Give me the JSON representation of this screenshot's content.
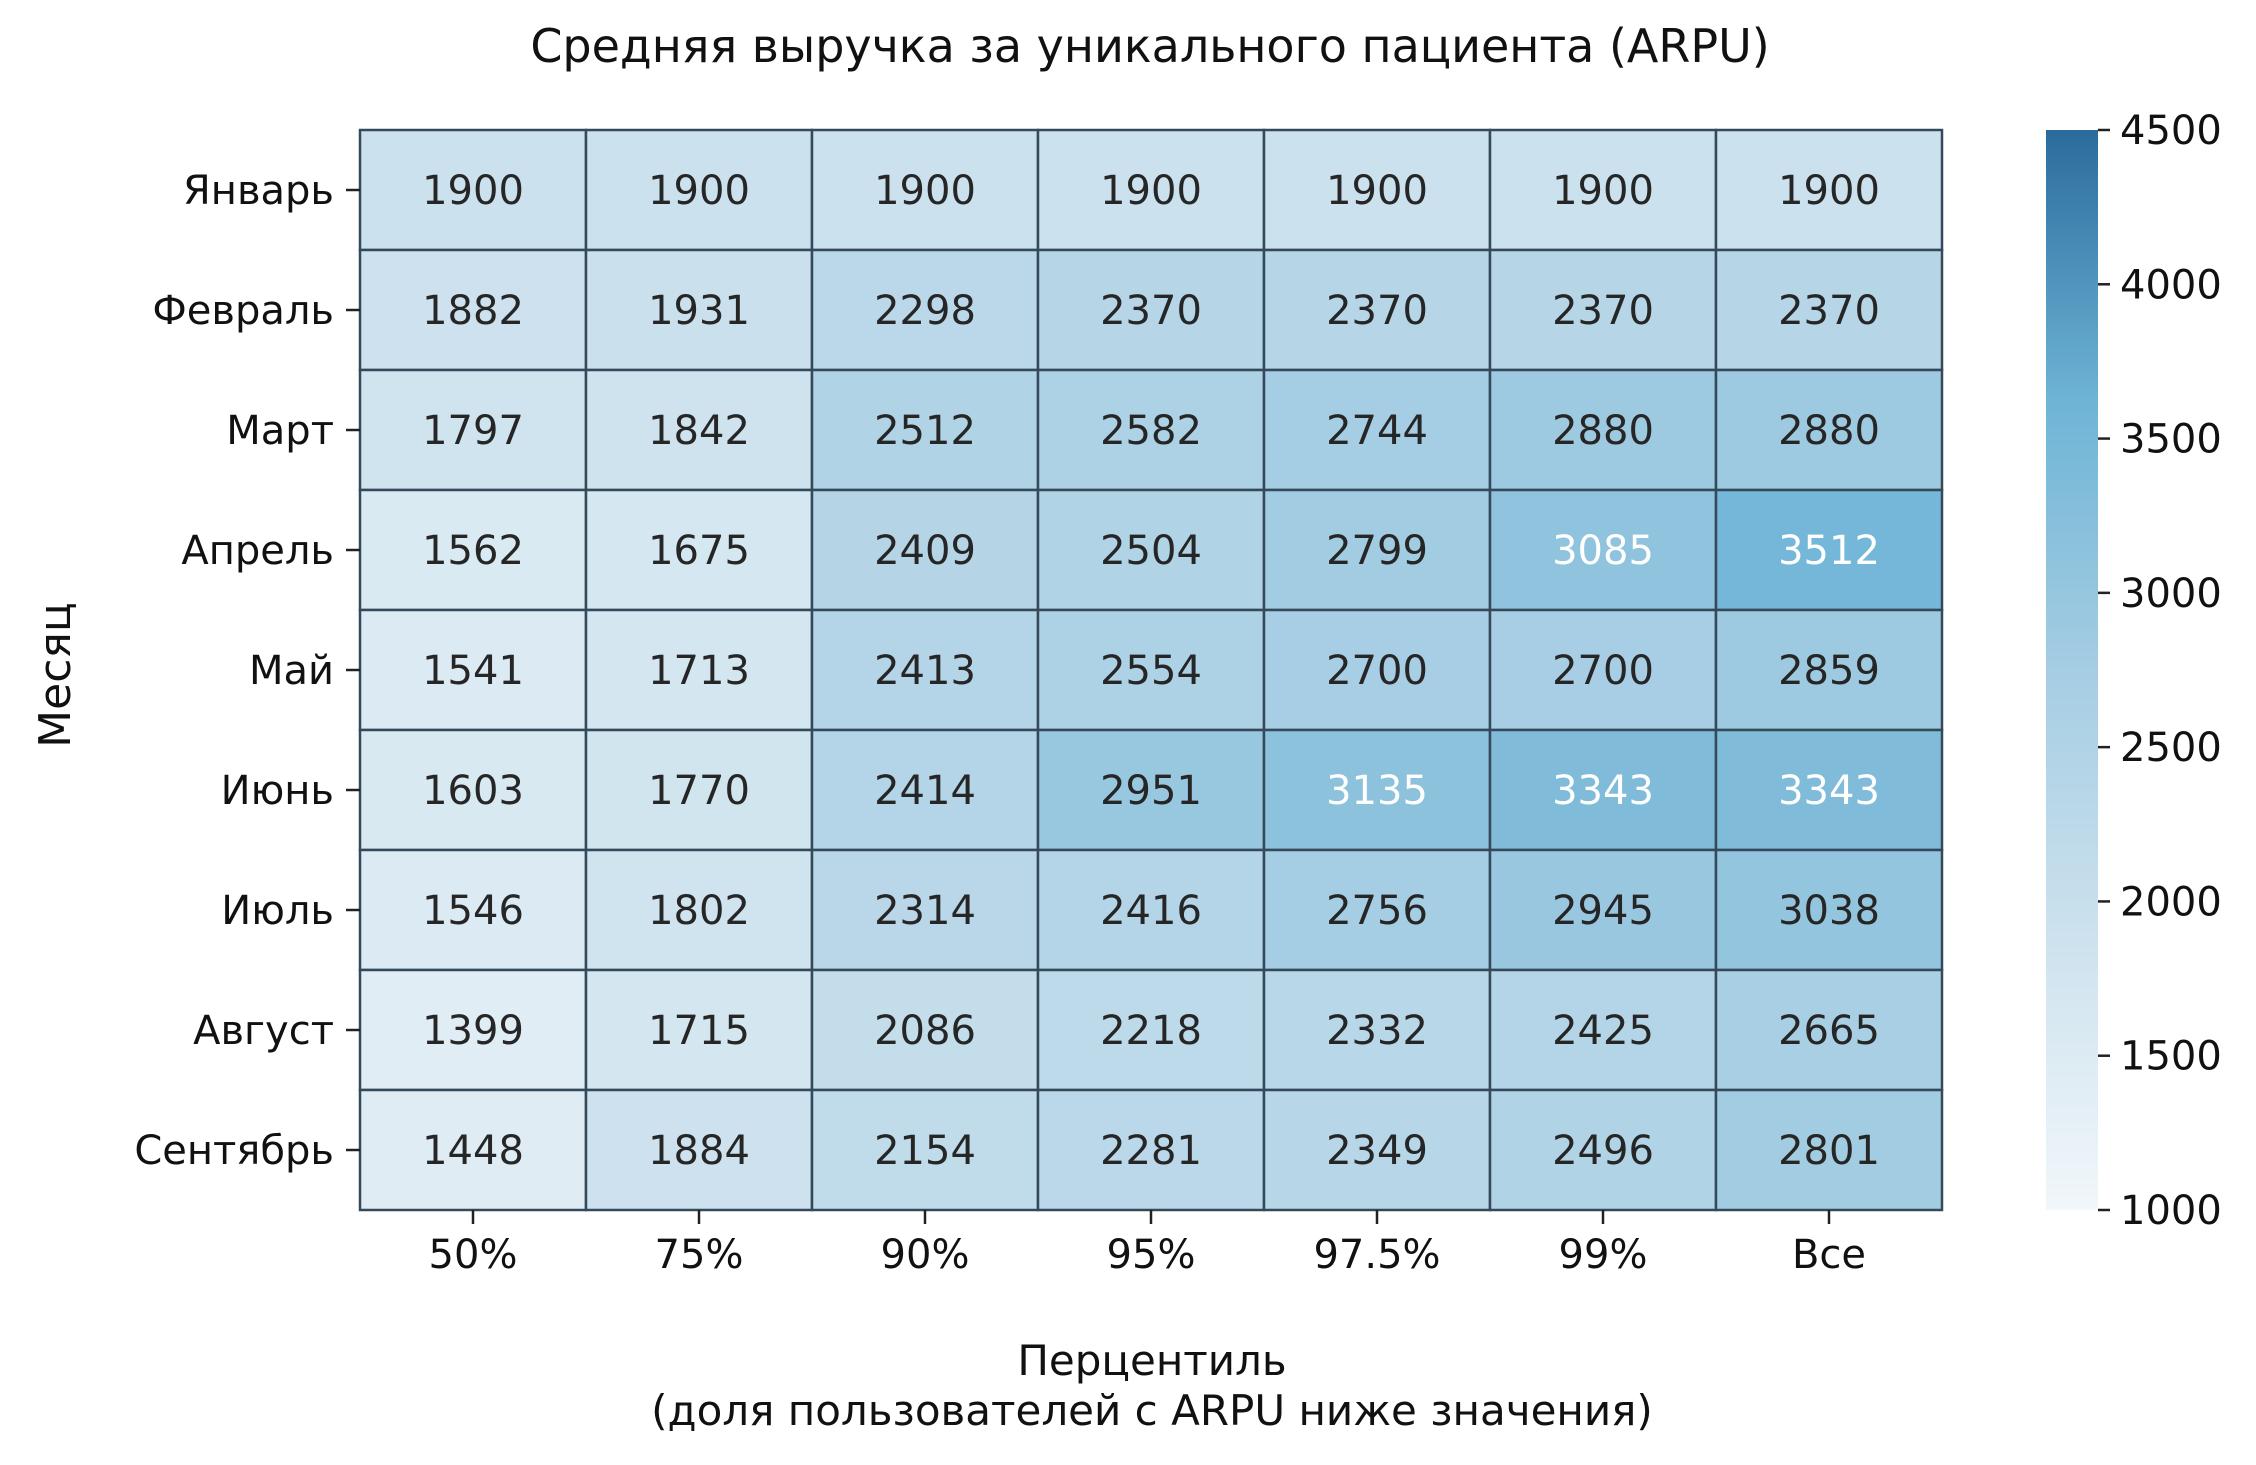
{
  "chart_data": {
    "type": "heatmap",
    "title": "Средняя выручка за уникального пациента (ARPU)",
    "xlabel_lines": [
      "Перцентиль",
      "(доля пользователей с ARPU ниже значения)"
    ],
    "ylabel": "Месяц",
    "x_categories": [
      "50%",
      "75%",
      "90%",
      "95%",
      "97.5%",
      "99%",
      "Все"
    ],
    "y_categories": [
      "Январь",
      "Февраль",
      "Март",
      "Апрель",
      "Май",
      "Июнь",
      "Июль",
      "Август",
      "Сентябрь"
    ],
    "values": [
      [
        1900,
        1900,
        1900,
        1900,
        1900,
        1900,
        1900
      ],
      [
        1882,
        1931,
        2298,
        2370,
        2370,
        2370,
        2370
      ],
      [
        1797,
        1842,
        2512,
        2582,
        2744,
        2880,
        2880
      ],
      [
        1562,
        1675,
        2409,
        2504,
        2799,
        3085,
        3512
      ],
      [
        1541,
        1713,
        2413,
        2554,
        2700,
        2700,
        2859
      ],
      [
        1603,
        1770,
        2414,
        2951,
        3135,
        3343,
        3343
      ],
      [
        1546,
        1802,
        2314,
        2416,
        2756,
        2945,
        3038
      ],
      [
        1399,
        1715,
        2086,
        2218,
        2332,
        2425,
        2665
      ],
      [
        1448,
        1884,
        2154,
        2281,
        2349,
        2496,
        2801
      ]
    ],
    "colorbar": {
      "range": [
        1000,
        4500
      ],
      "ticks": [
        1000,
        1500,
        2000,
        2500,
        3000,
        3500,
        4000,
        4500
      ],
      "colors": [
        "#f1f7fa",
        "#cde2ee",
        "#a5cde3",
        "#6eb4d6",
        "#2b6b9c"
      ]
    },
    "cell_border_color": "#344a5a",
    "text_light_threshold": 3080,
    "grid": false,
    "legend": "colorbar-right"
  }
}
